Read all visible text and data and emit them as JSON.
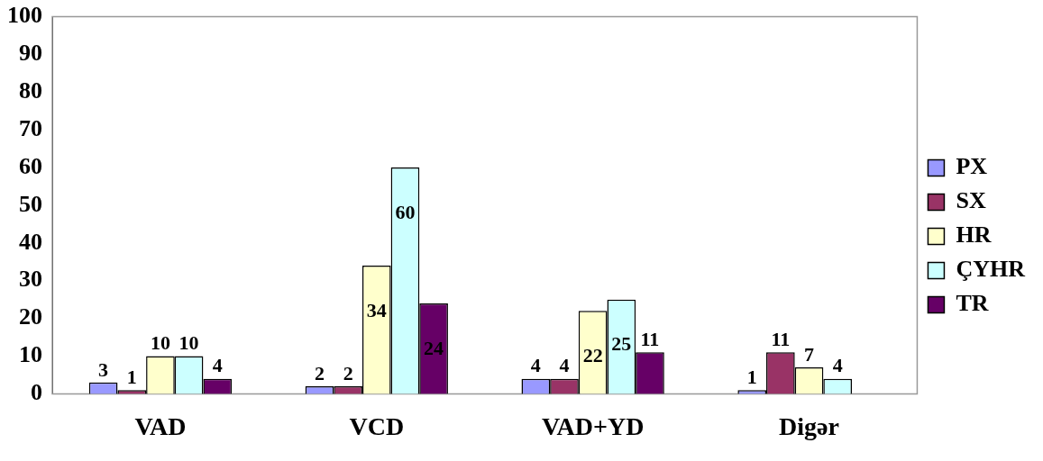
{
  "chart_data": {
    "type": "bar",
    "categories": [
      "VAD",
      "VCD",
      "VAD+YD",
      "Digər"
    ],
    "series": [
      {
        "name": "PX",
        "color": "#9999ff",
        "values": [
          3,
          2,
          4,
          1
        ]
      },
      {
        "name": "SX",
        "color": "#993366",
        "values": [
          1,
          2,
          4,
          11
        ]
      },
      {
        "name": "HR",
        "color": "#ffffcc",
        "values": [
          10,
          34,
          22,
          7
        ]
      },
      {
        "name": "ÇYHR",
        "color": "#ccffff",
        "values": [
          10,
          60,
          25,
          4
        ]
      },
      {
        "name": "TR",
        "color": "#660066",
        "values": [
          4,
          24,
          11,
          null
        ]
      }
    ],
    "ylim": [
      0,
      100
    ],
    "yticks": [
      0,
      10,
      20,
      30,
      40,
      50,
      60,
      70,
      80,
      90,
      100
    ],
    "grid": false,
    "legend": "right",
    "data_labels": true
  }
}
